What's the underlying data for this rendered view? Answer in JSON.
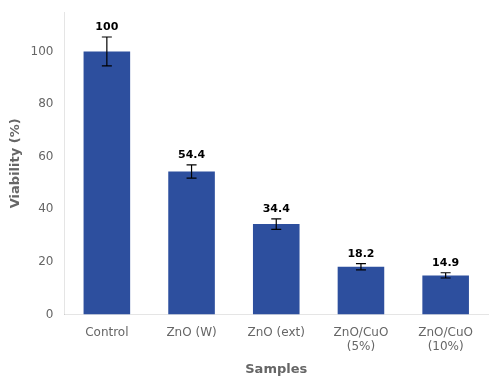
{
  "chart_data": {
    "type": "bar",
    "categories": [
      "Control",
      "ZnO (W)",
      "ZnO (ext)",
      "ZnO/CuO\n(5%)",
      "ZnO/CuO\n(10%)"
    ],
    "values": [
      100,
      54.4,
      34.4,
      18.2,
      14.9
    ],
    "errors": [
      5.5,
      2.5,
      2.0,
      1.2,
      1.0
    ],
    "color": "#2d4f9e",
    "xlabel": "Samples",
    "ylabel": "Viability (%)",
    "ylim": [
      0,
      115
    ],
    "yticks": [
      0,
      20,
      40,
      60,
      80,
      100
    ],
    "grid": false,
    "legend": false,
    "data_labels": true
  }
}
